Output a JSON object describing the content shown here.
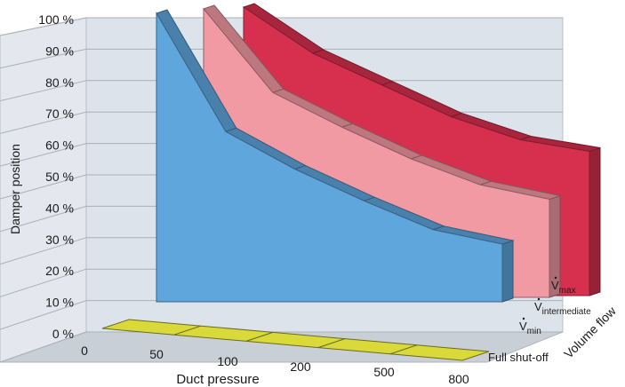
{
  "chart_data": {
    "type": "area",
    "xlabel": "Duct pressure",
    "ylabel": "Damper position",
    "zlabel": "Volume flow",
    "y_ticks": [
      "0 %",
      "10 %",
      "20 %",
      "30 %",
      "40 %",
      "50 %",
      "60 %",
      "70 %",
      "80 %",
      "90 %",
      "100 %"
    ],
    "x_ticks": [
      "0",
      "50",
      "100",
      "200",
      "500",
      "800"
    ],
    "x": [
      0,
      50,
      100,
      200,
      500,
      800
    ],
    "ylim": [
      0,
      100
    ],
    "grid": true,
    "series": [
      {
        "name": "Full shut-off",
        "values": [
          0,
          0,
          0,
          0,
          0,
          0
        ],
        "color": "#d9d93a"
      },
      {
        "name_base": "V",
        "name_sub": "min",
        "values": [
          100,
          59,
          46,
          35,
          25,
          20
        ],
        "color": "#5fa6dc"
      },
      {
        "name_base": "V",
        "name_sub": "intermediate",
        "values": [
          100,
          71,
          59,
          48,
          39,
          34
        ],
        "color": "#f29aa3"
      },
      {
        "name_base": "V",
        "name_sub": "max",
        "values": [
          100,
          84,
          73,
          62,
          54,
          50
        ],
        "color": "#d7304f"
      }
    ]
  }
}
